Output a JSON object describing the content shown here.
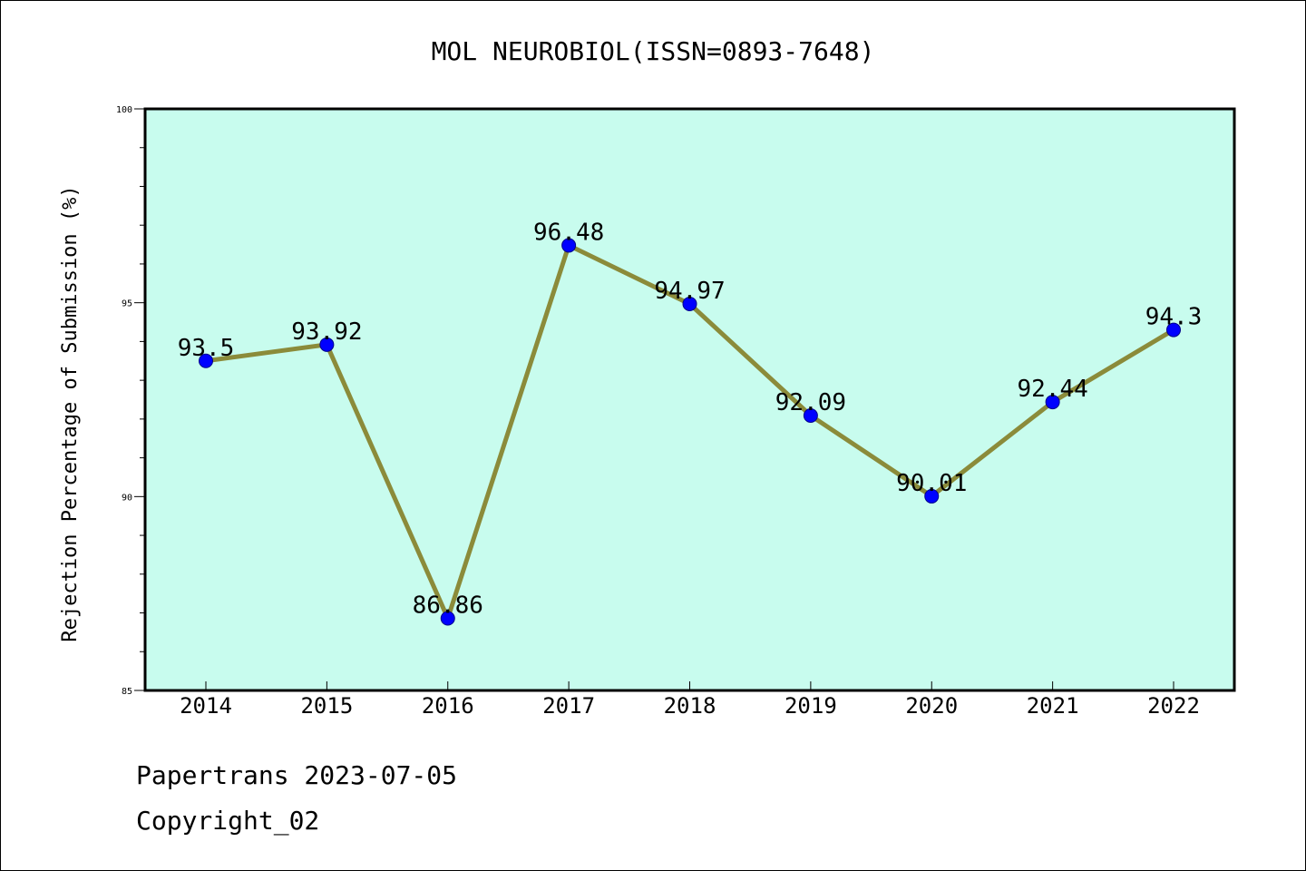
{
  "chart_data": {
    "type": "line",
    "title": "MOL NEUROBIOL(ISSN=0893-7648)",
    "xlabel": "",
    "ylabel": "Rejection Percentage of Submission (%)",
    "categories": [
      "2014",
      "2015",
      "2016",
      "2017",
      "2018",
      "2019",
      "2020",
      "2021",
      "2022"
    ],
    "series": [
      {
        "values": [
          93.5,
          93.92,
          86.86,
          96.48,
          94.97,
          92.09,
          90.01,
          92.44,
          94.3
        ],
        "labels": [
          "93.5",
          "93.92",
          "86.86",
          "96.48",
          "94.97",
          "92.09",
          "90.01",
          "92.44",
          "94.3"
        ]
      }
    ],
    "ylim": [
      85,
      100
    ],
    "yticks": [
      "85",
      "90",
      "95",
      "100"
    ],
    "grid": false,
    "colors": {
      "plot_background": "#c8fcee",
      "line": "#8b8b3a",
      "marker": "#0000ff",
      "marker_edge": "#00008b"
    }
  },
  "footer": {
    "source": "Papertrans 2023-07-05",
    "copyright": "Copyright_02"
  }
}
